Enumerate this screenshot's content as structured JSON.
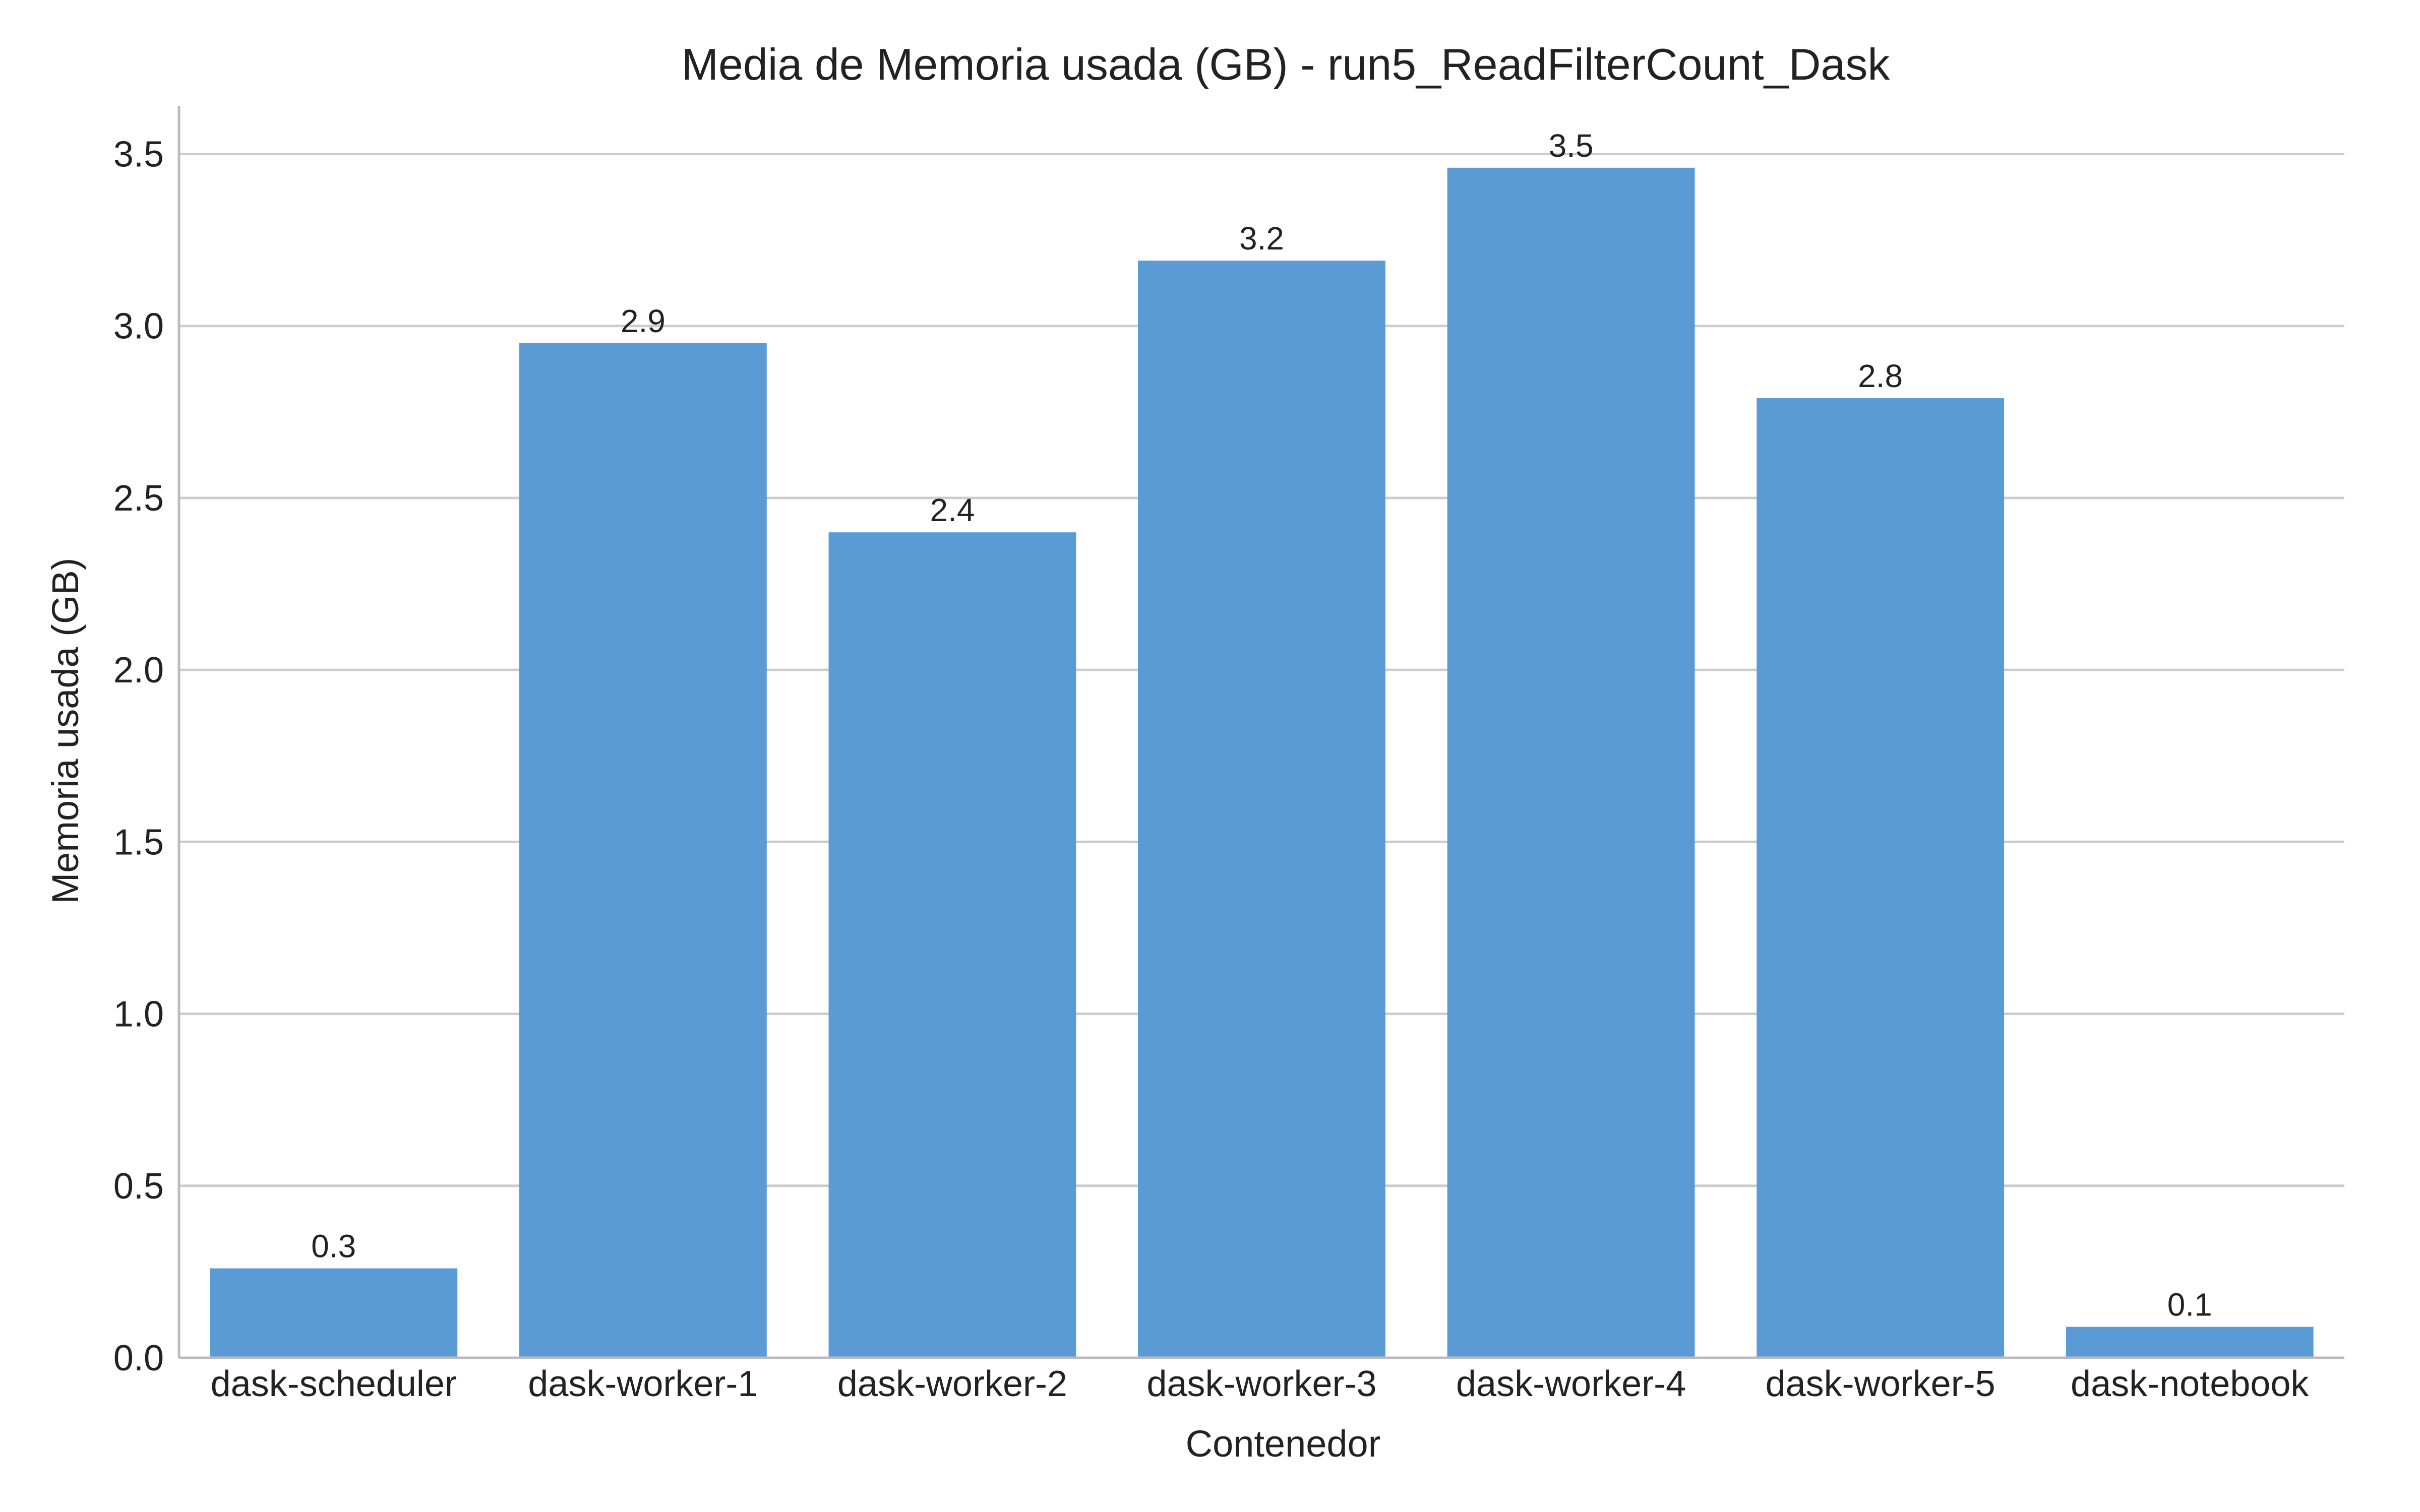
{
  "chart_data": {
    "type": "bar",
    "title": "Media de Memoria usada (GB) - run5_ReadFilterCount_Dask",
    "xlabel": "Contenedor",
    "ylabel": "Memoria usada (GB)",
    "categories": [
      "dask-scheduler",
      "dask-worker-1",
      "dask-worker-2",
      "dask-worker-3",
      "dask-worker-4",
      "dask-worker-5",
      "dask-notebook"
    ],
    "values": [
      0.26,
      2.95,
      2.4,
      3.19,
      3.46,
      2.79,
      0.09
    ],
    "data_labels": [
      "0.3",
      "2.9",
      "2.4",
      "3.2",
      "3.5",
      "2.8",
      "0.1"
    ],
    "yticks": [
      0.0,
      0.5,
      1.0,
      1.5,
      2.0,
      2.5,
      3.0,
      3.5
    ],
    "ytick_labels": [
      "0.0",
      "0.5",
      "1.0",
      "1.5",
      "2.0",
      "2.5",
      "3.0",
      "3.5"
    ],
    "ylim": [
      0,
      3.64
    ],
    "grid": "horizontal",
    "bar_color": "#5b9bd5"
  }
}
